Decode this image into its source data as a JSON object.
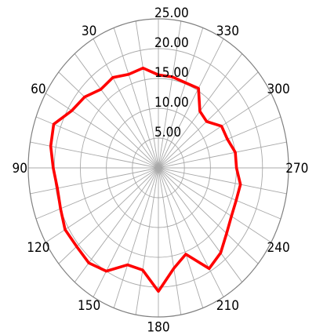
{
  "chart_data": {
    "type": "polar-line",
    "title": "",
    "angle_direction": "counterclockwise",
    "zero_angle_position": "top",
    "angle_ticks": [
      0,
      30,
      60,
      90,
      120,
      150,
      180,
      210,
      240,
      270,
      300,
      330
    ],
    "angle_tick_labels": [
      "",
      "30",
      "60",
      "90",
      "120",
      "150",
      "180",
      "210",
      "240",
      "270",
      "300",
      "330"
    ],
    "radial_range": [
      0,
      25
    ],
    "radial_ticks": [
      5,
      10,
      15,
      20,
      25
    ],
    "radial_tick_labels": [
      "5.00",
      "10.00",
      "15.00",
      "20.00",
      "25.00"
    ],
    "grid": true,
    "series": [
      {
        "color": "#ff0000",
        "theta": [
          0,
          10,
          20,
          30,
          40,
          50,
          60,
          70,
          80,
          90,
          100,
          110,
          120,
          130,
          140,
          150,
          160,
          170,
          180,
          190,
          200,
          210,
          220,
          230,
          240,
          250,
          260,
          270,
          280,
          290,
          300,
          310,
          320,
          330,
          340,
          350
        ],
        "r": [
          15.6,
          17.0,
          16.7,
          17.5,
          17.2,
          18.5,
          19.2,
          21.4,
          21.0,
          20.2,
          19.7,
          20.0,
          20.7,
          20.5,
          20.8,
          20.0,
          17.3,
          17.4,
          20.7,
          17.1,
          15.4,
          19.5,
          18.6,
          17.1,
          16.2,
          15.9,
          16.0,
          15.0,
          15.0,
          14.1,
          14.0,
          12.1,
          12.4,
          15.4,
          15.2,
          15.5
        ]
      }
    ]
  }
}
